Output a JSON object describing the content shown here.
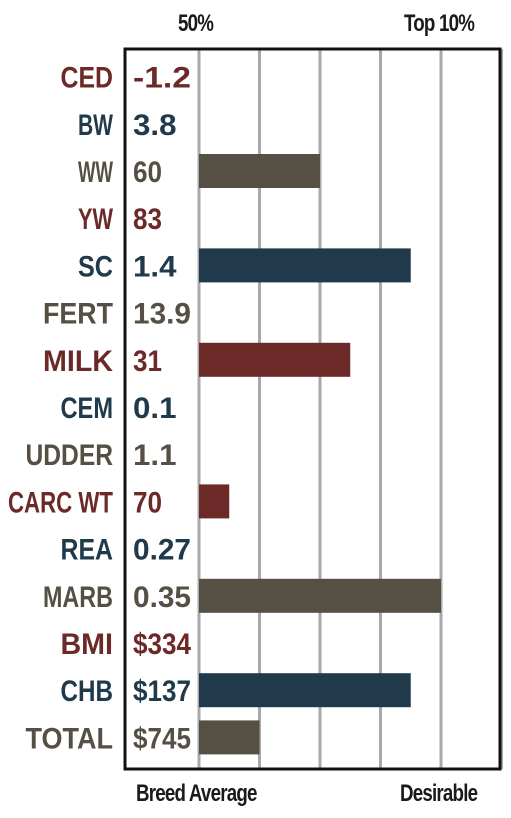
{
  "header": {
    "left_label": "50%",
    "right_label": "Top 10%"
  },
  "footer": {
    "left_label": "Breed Average",
    "right_label": "Desirable"
  },
  "colors": {
    "red": "#6b2a28",
    "blue": "#203a4c",
    "gray": "#554f44",
    "gridline": "#a9a9ad",
    "border": "#111111"
  },
  "chart_data": {
    "type": "bar",
    "orientation": "horizontal",
    "xlim": [
      0,
      5
    ],
    "grid": true,
    "rows": [
      {
        "trait": "CED",
        "value_label": "-1.2",
        "bar": 0,
        "color": "red"
      },
      {
        "trait": "BW",
        "value_label": "3.8",
        "bar": 0,
        "color": "blue"
      },
      {
        "trait": "WW",
        "value_label": "60",
        "bar": 2.0,
        "color": "gray"
      },
      {
        "trait": "YW",
        "value_label": "83",
        "bar": 0,
        "color": "red"
      },
      {
        "trait": "SC",
        "value_label": "1.4",
        "bar": 3.5,
        "color": "blue"
      },
      {
        "trait": "FERT",
        "value_label": "13.9",
        "bar": 0,
        "color": "gray"
      },
      {
        "trait": "MILK",
        "value_label": "31",
        "bar": 2.5,
        "color": "red"
      },
      {
        "trait": "CEM",
        "value_label": "0.1",
        "bar": 0,
        "color": "blue"
      },
      {
        "trait": "UDDER",
        "value_label": "1.1",
        "bar": 0,
        "color": "gray"
      },
      {
        "trait": "CARC WT",
        "value_label": "70",
        "bar": 0.5,
        "color": "red"
      },
      {
        "trait": "REA",
        "value_label": "0.27",
        "bar": 0,
        "color": "blue"
      },
      {
        "trait": "MARB",
        "value_label": "0.35",
        "bar": 4.0,
        "color": "gray"
      },
      {
        "trait": "BMI",
        "value_label": "$334",
        "bar": 0,
        "color": "red"
      },
      {
        "trait": "CHB",
        "value_label": "$137",
        "bar": 3.5,
        "color": "blue"
      },
      {
        "trait": "TOTAL",
        "value_label": "$745",
        "bar": 1.0,
        "color": "gray"
      }
    ]
  }
}
